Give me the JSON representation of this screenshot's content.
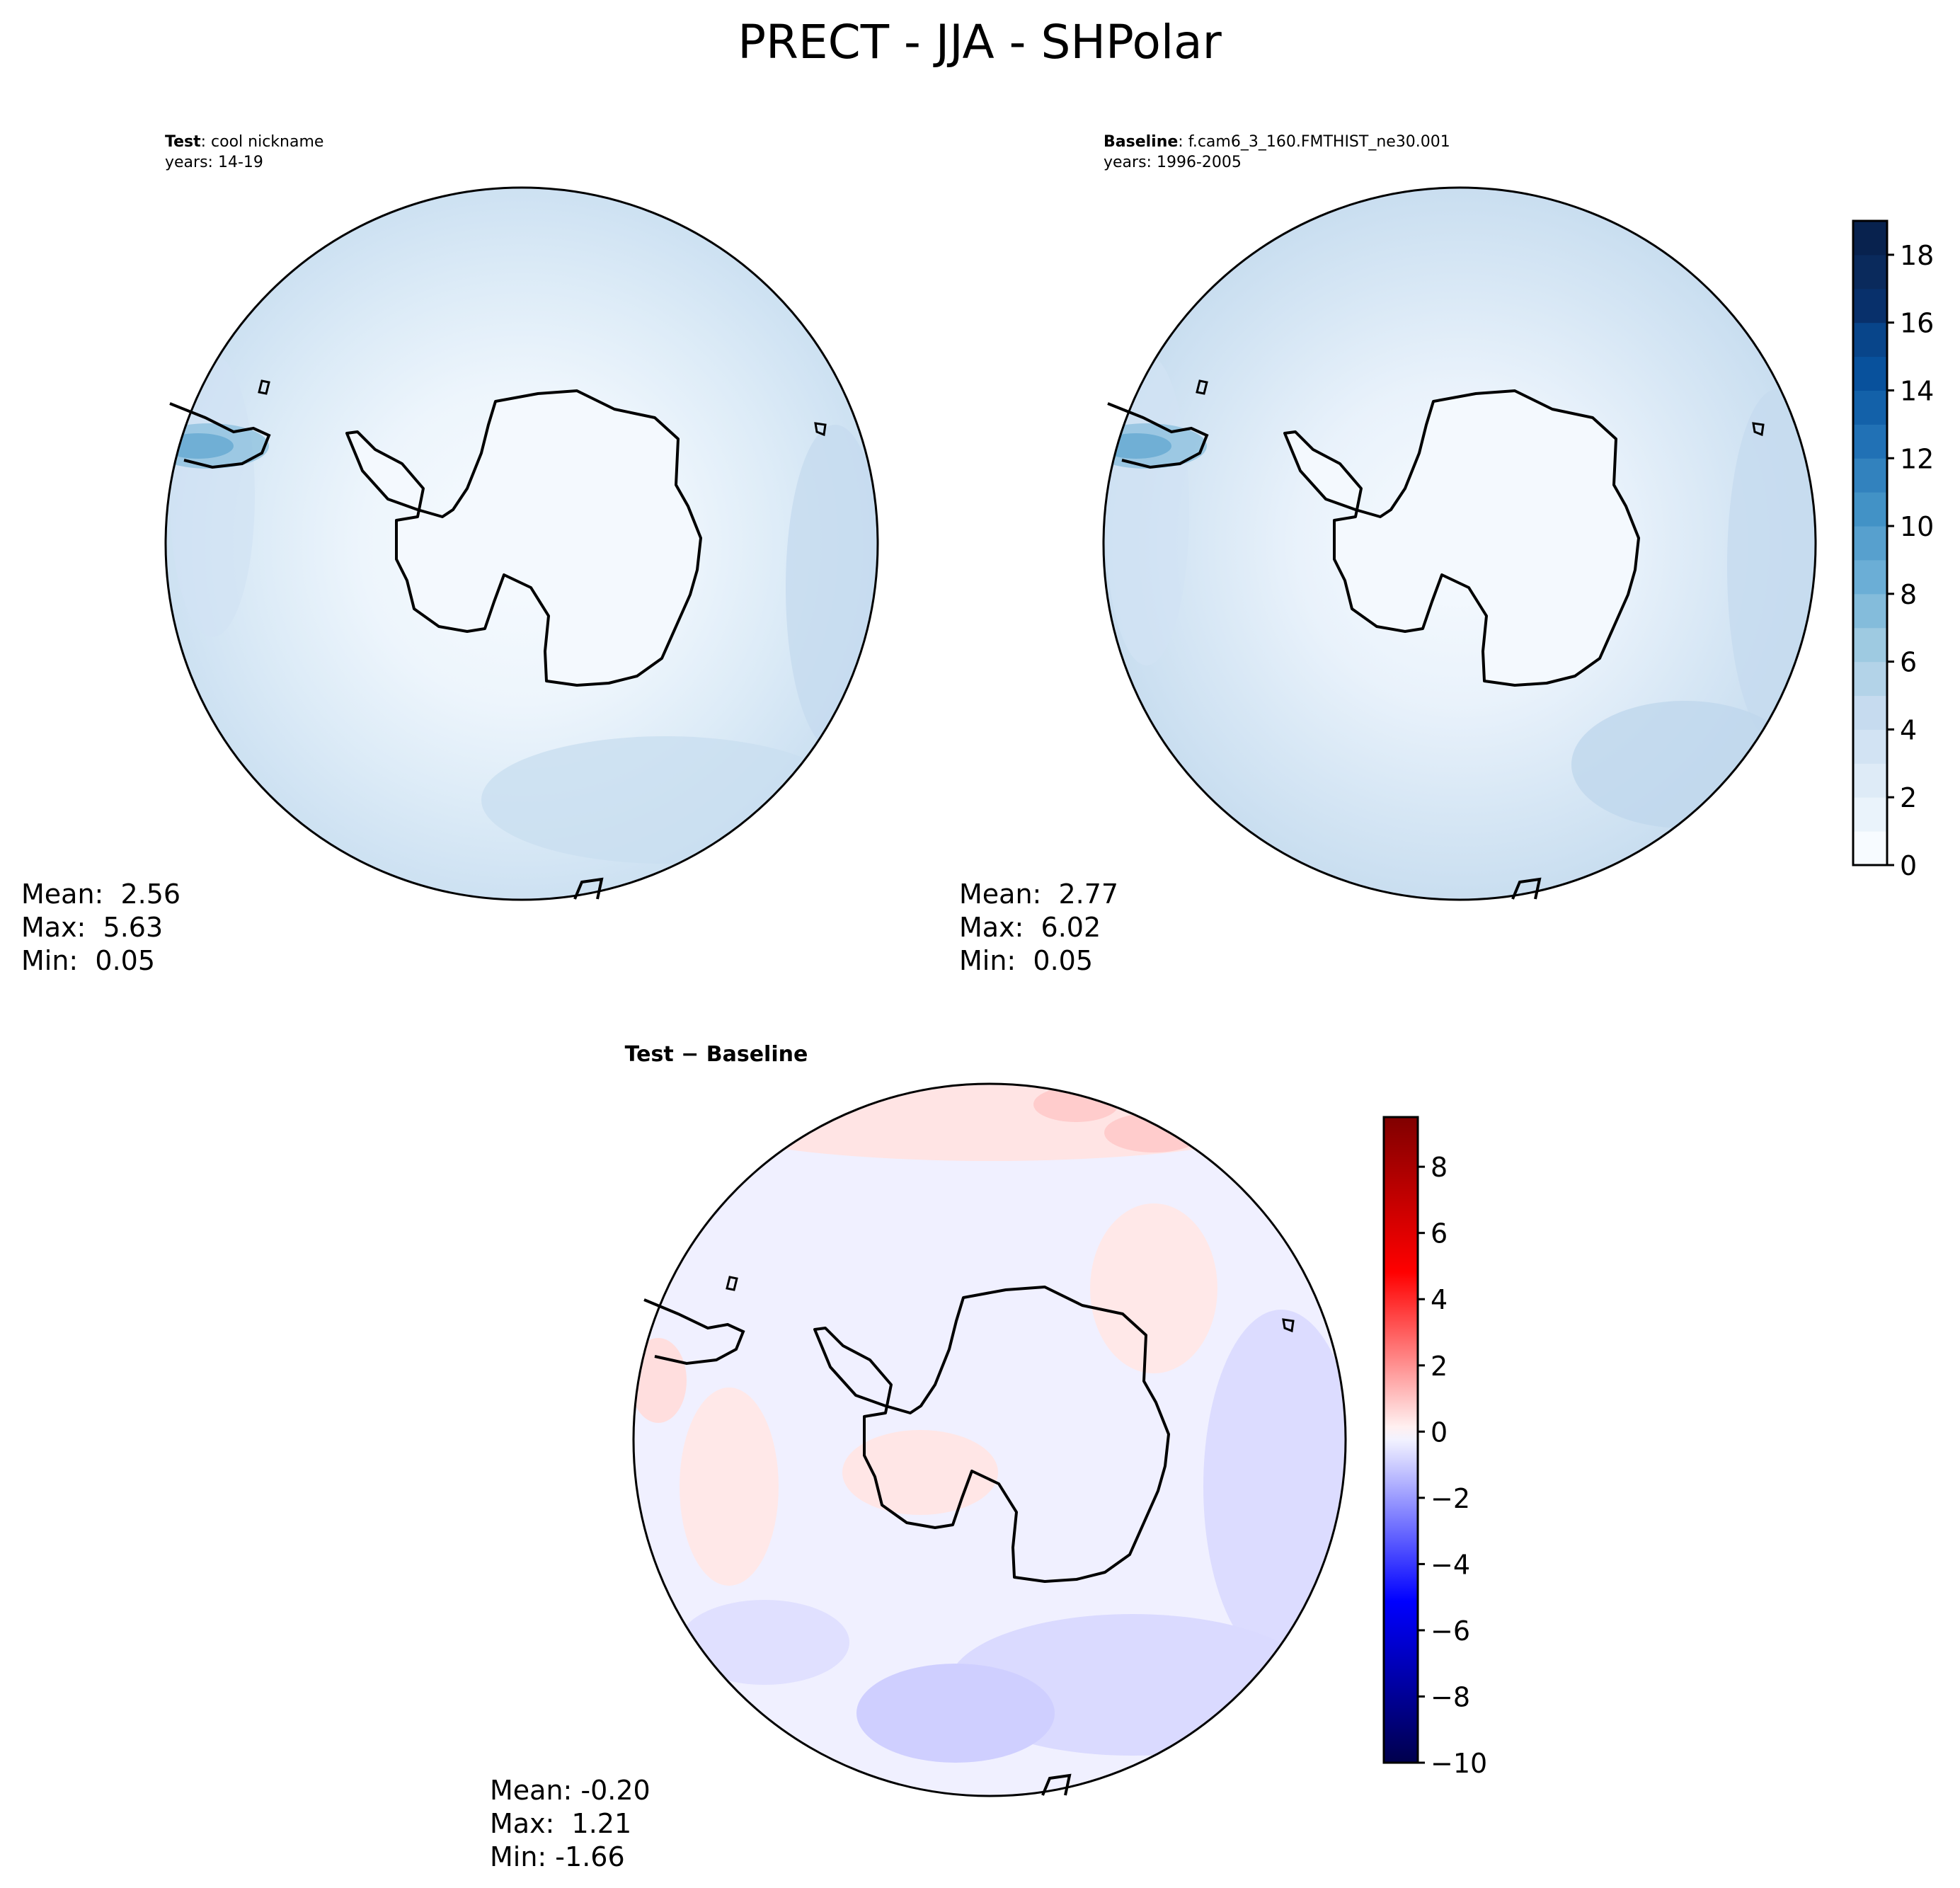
{
  "title": "PRECT - JJA - SHPolar",
  "chart_data": [
    {
      "type": "heatmap",
      "projection": "south-polar-stereographic",
      "panel": "test",
      "header_label": "Test",
      "header_value": ": cool nickname",
      "years_label": "years: 14-19",
      "stats": {
        "mean": "Mean:  2.56",
        "max": "Max:  5.63",
        "min": "Min:  0.05"
      },
      "colormap": "Blues",
      "colorbar": null,
      "coastline": "Antarctica"
    },
    {
      "type": "heatmap",
      "projection": "south-polar-stereographic",
      "panel": "baseline",
      "header_label": "Baseline",
      "header_value": ": f.cam6_3_160.FMTHIST_ne30.001",
      "years_label": "years: 1996-2005",
      "stats": {
        "mean": "Mean:  2.77",
        "max": "Max:  6.02",
        "min": "Min:  0.05"
      },
      "colormap": "Blues",
      "colorbar": {
        "range": [
          0,
          19
        ],
        "levels": [
          0,
          1,
          2,
          3,
          4,
          5,
          6,
          7,
          8,
          9,
          10,
          11,
          12,
          13,
          14,
          15,
          16,
          17,
          18,
          19
        ],
        "ticks": [
          0,
          2,
          4,
          6,
          8,
          10,
          12,
          14,
          16,
          18
        ],
        "tick_labels": [
          "0",
          "2",
          "4",
          "6",
          "8",
          "10",
          "12",
          "14",
          "16",
          "18"
        ],
        "colors": [
          "#f7fbff",
          "#eaf3fb",
          "#deebf7",
          "#d2e3f3",
          "#c6dbef",
          "#b3d3e8",
          "#9ecae1",
          "#84bcdb",
          "#6baed6",
          "#57a0ce",
          "#4292c6",
          "#3282be",
          "#2171b5",
          "#1361a9",
          "#08519c",
          "#08458a",
          "#08306b",
          "#0a2a5c",
          "#08224e"
        ]
      },
      "coastline": "Antarctica"
    },
    {
      "type": "heatmap",
      "projection": "south-polar-stereographic",
      "panel": "difference",
      "header_label": "Test − Baseline",
      "stats": {
        "mean": "Mean: -0.20",
        "max": "Max:  1.21",
        "min": "Min: -1.66"
      },
      "colormap": "seismic",
      "colorbar": {
        "range": [
          -10,
          9.5
        ],
        "ticks": [
          -10,
          -8,
          -6,
          -4,
          -2,
          0,
          2,
          4,
          6,
          8
        ],
        "tick_labels": [
          "−10",
          "−8",
          "−6",
          "−4",
          "−2",
          "0",
          "2",
          "4",
          "6",
          "8"
        ]
      },
      "coastline": "Antarctica"
    }
  ]
}
